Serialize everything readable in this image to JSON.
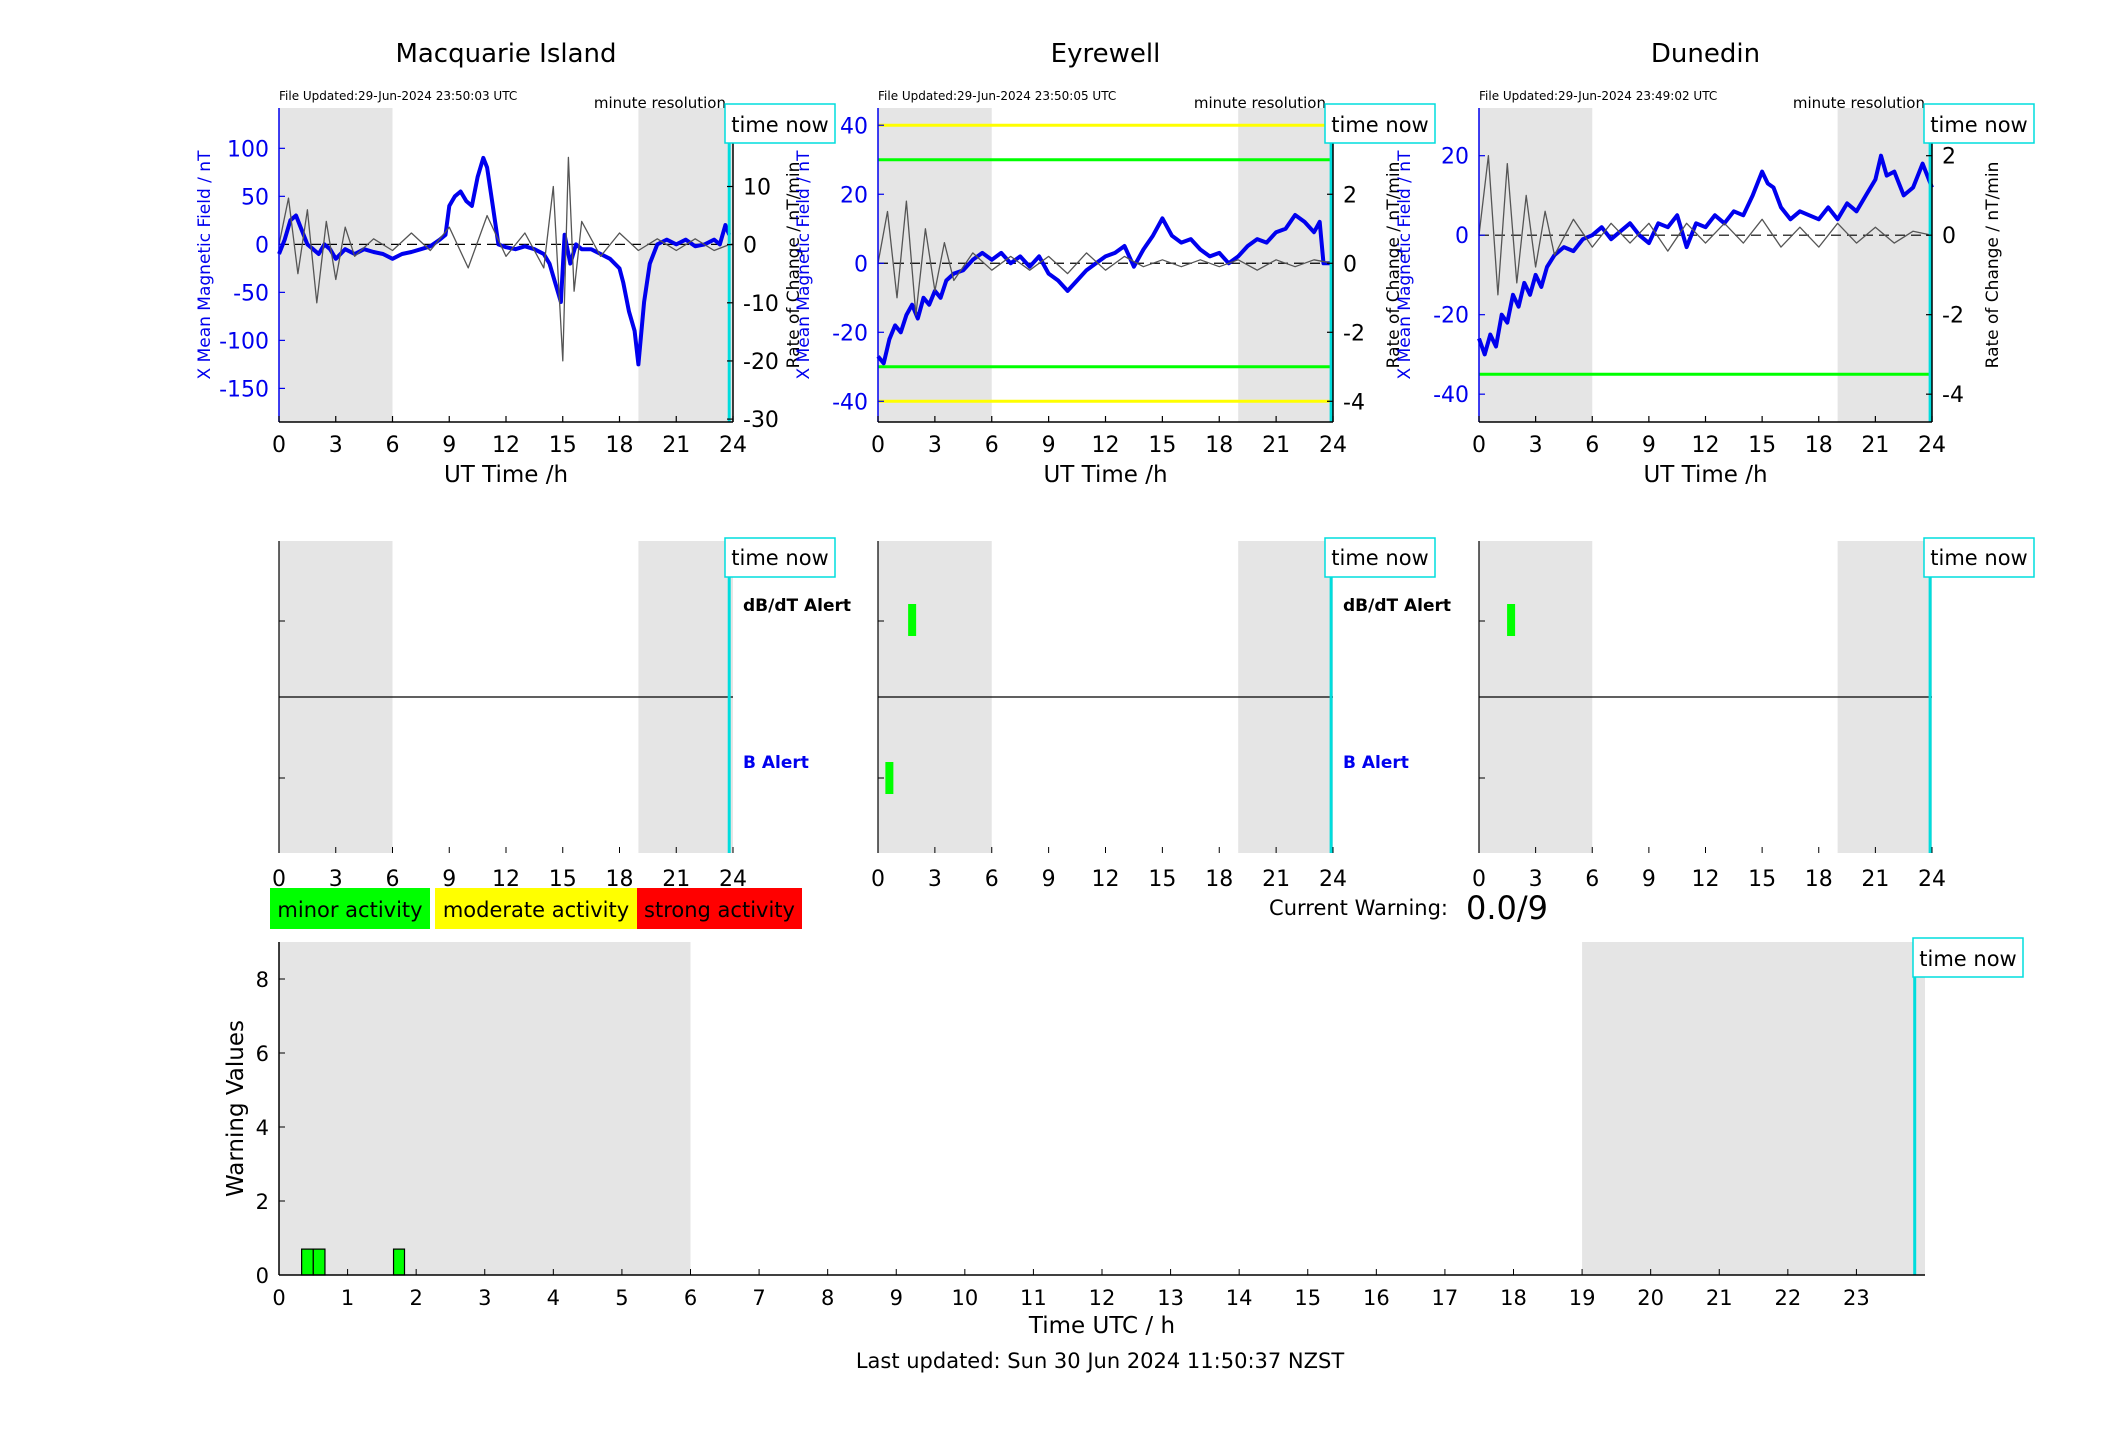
{
  "footer": {
    "last_updated": "Last updated: Sun 30 Jun 2024 11:50:37 NZST"
  },
  "time_now_label": "time now",
  "legend": {
    "minor": {
      "label": "minor activity",
      "color": "#00ff00"
    },
    "moderate": {
      "label": "moderate activity",
      "color": "#ffff00"
    },
    "strong": {
      "label": "strong activity",
      "color": "#ff0000"
    }
  },
  "current_warning": {
    "label": "Current Warning:",
    "value": "0.0/9"
  },
  "colors": {
    "field": "#0000ee",
    "rate": "#555555",
    "night": "#e5e5e5",
    "now": "#00dddd",
    "warn_green": "#00ff00",
    "warn_yellow": "#ffff00"
  },
  "chart_data": [
    {
      "type": "line",
      "title": "Macquarie Island",
      "file_updated": "File Updated:29-Jun-2024 23:50:03 UTC",
      "resolution": "minute resolution",
      "xlabel": "UT Time /h",
      "ylabel_left": "X Mean Magnetic Field / nT",
      "ylabel_right": "Rate of Change / nT/min",
      "xlim": [
        0,
        24
      ],
      "xticks": [
        0,
        3,
        6,
        9,
        12,
        15,
        18,
        21,
        24
      ],
      "ylim_left": [
        -185,
        142
      ],
      "yticks_left": [
        -150,
        -100,
        -50,
        0,
        50,
        100
      ],
      "ylim_right": [
        -30.5,
        23.5
      ],
      "yticks_right": [
        -30,
        -20,
        -10,
        0,
        10,
        20
      ],
      "night_bands": [
        [
          0,
          6
        ],
        [
          19,
          24
        ]
      ],
      "now": 23.8,
      "threshold_lines": [],
      "series": [
        {
          "axis": "left",
          "x": [
            0,
            0.3,
            0.6,
            0.9,
            1.2,
            1.5,
            1.8,
            2.1,
            2.4,
            2.7,
            3,
            3.5,
            4,
            4.5,
            5,
            5.5,
            6,
            6.5,
            7,
            7.5,
            8,
            8.5,
            8.8,
            9,
            9.3,
            9.6,
            9.9,
            10.2,
            10.5,
            10.8,
            11,
            11.3,
            11.6,
            12,
            12.5,
            13,
            13.5,
            14,
            14.3,
            14.6,
            14.9,
            15.1,
            15.4,
            15.7,
            16,
            16.5,
            17,
            17.5,
            18,
            18.2,
            18.5,
            18.8,
            19,
            19.3,
            19.6,
            20,
            20.5,
            21,
            21.5,
            22,
            22.5,
            23,
            23.3,
            23.6,
            23.8
          ],
          "y": [
            -10,
            5,
            25,
            30,
            15,
            0,
            -5,
            -10,
            0,
            -5,
            -15,
            -5,
            -10,
            -5,
            -8,
            -10,
            -15,
            -10,
            -8,
            -5,
            -2,
            5,
            10,
            40,
            50,
            55,
            45,
            40,
            70,
            90,
            80,
            40,
            0,
            -3,
            -5,
            -2,
            -5,
            -10,
            -20,
            -40,
            -60,
            10,
            -20,
            0,
            -5,
            -5,
            -10,
            -15,
            -25,
            -40,
            -70,
            -90,
            -125,
            -60,
            -20,
            0,
            5,
            0,
            5,
            -2,
            0,
            5,
            0,
            20,
            10
          ]
        },
        {
          "axis": "right",
          "x": [
            0,
            0.5,
            1,
            1.5,
            2,
            2.5,
            3,
            3.5,
            4,
            5,
            6,
            7,
            8,
            9,
            10,
            11,
            12,
            13,
            14,
            14.5,
            15,
            15.3,
            15.6,
            16,
            17,
            18,
            19,
            20,
            21,
            22,
            23,
            23.8
          ],
          "y": [
            0,
            8,
            -5,
            6,
            -10,
            4,
            -6,
            3,
            -2,
            1,
            -1,
            2,
            -1,
            3,
            -4,
            5,
            -2,
            2,
            -4,
            10,
            -20,
            15,
            -8,
            4,
            -2,
            2,
            -1,
            1,
            -1,
            1,
            -1,
            0
          ]
        }
      ]
    },
    {
      "type": "line",
      "title": "Eyrewell",
      "file_updated": "File Updated:29-Jun-2024 23:50:05 UTC",
      "resolution": "minute resolution",
      "xlabel": "UT Time /h",
      "ylabel_left": "X Mean Magnetic Field / nT",
      "ylabel_right": "Rate of Change / nT/min",
      "xlim": [
        0,
        24
      ],
      "xticks": [
        0,
        3,
        6,
        9,
        12,
        15,
        18,
        21,
        24
      ],
      "ylim_left": [
        -46,
        45
      ],
      "yticks_left": [
        -40,
        -20,
        0,
        20,
        40
      ],
      "ylim_right": [
        -4.6,
        4.5
      ],
      "yticks_right": [
        -4,
        -2,
        0,
        2,
        4
      ],
      "night_bands": [
        [
          0,
          6
        ],
        [
          19,
          24
        ]
      ],
      "now": 23.9,
      "threshold_lines": [
        {
          "axis": "left",
          "y": 40,
          "color": "#ffff00"
        },
        {
          "axis": "left",
          "y": 30,
          "color": "#00ff00"
        },
        {
          "axis": "left",
          "y": -30,
          "color": "#00ff00"
        },
        {
          "axis": "left",
          "y": -40,
          "color": "#ffff00"
        }
      ],
      "series": [
        {
          "axis": "left",
          "x": [
            0,
            0.3,
            0.6,
            0.9,
            1.2,
            1.5,
            1.8,
            2.1,
            2.4,
            2.7,
            3,
            3.3,
            3.6,
            4,
            4.5,
            5,
            5.5,
            6,
            6.5,
            7,
            7.5,
            8,
            8.5,
            9,
            9.5,
            10,
            10.5,
            11,
            11.5,
            12,
            12.5,
            13,
            13.5,
            14,
            14.5,
            15,
            15.5,
            16,
            16.5,
            17,
            17.5,
            18,
            18.5,
            19,
            19.5,
            20,
            20.5,
            21,
            21.5,
            22,
            22.5,
            23,
            23.3,
            23.5,
            24
          ],
          "y": [
            -27,
            -29,
            -22,
            -18,
            -20,
            -15,
            -12,
            -16,
            -10,
            -12,
            -8,
            -10,
            -5,
            -3,
            -2,
            1,
            3,
            1,
            3,
            0,
            2,
            -1,
            2,
            -3,
            -5,
            -8,
            -5,
            -2,
            0,
            2,
            3,
            5,
            -1,
            4,
            8,
            13,
            8,
            6,
            7,
            4,
            2,
            3,
            0,
            2,
            5,
            7,
            6,
            9,
            10,
            14,
            12,
            9,
            12,
            0,
            0
          ]
        },
        {
          "axis": "right",
          "x": [
            0,
            0.5,
            1,
            1.5,
            2,
            2.5,
            3,
            3.5,
            4,
            5,
            6,
            7,
            8,
            9,
            10,
            11,
            12,
            13,
            14,
            15,
            16,
            17,
            18,
            19,
            20,
            21,
            22,
            23,
            24
          ],
          "y": [
            0,
            1.5,
            -1,
            1.8,
            -1.5,
            1,
            -0.8,
            0.6,
            -0.5,
            0.3,
            -0.2,
            0.2,
            -0.2,
            0.2,
            -0.3,
            0.3,
            -0.2,
            0.2,
            -0.1,
            0.1,
            -0.1,
            0.1,
            -0.1,
            0.1,
            -0.2,
            0.1,
            -0.1,
            0.1,
            0
          ]
        }
      ]
    },
    {
      "type": "line",
      "title": "Dunedin",
      "file_updated": "File Updated:29-Jun-2024 23:49:02 UTC",
      "resolution": "minute resolution",
      "xlabel": "UT Time /h",
      "ylabel_left": "X Mean Magnetic Field / nT",
      "ylabel_right": "Rate of Change / nT/min",
      "xlim": [
        0,
        24
      ],
      "xticks": [
        0,
        3,
        6,
        9,
        12,
        15,
        18,
        21,
        24
      ],
      "ylim_left": [
        -47,
        32
      ],
      "yticks_left": [
        -40,
        -20,
        0,
        20
      ],
      "ylim_right": [
        -4.7,
        3.2
      ],
      "yticks_right": [
        -4,
        -2,
        0,
        2
      ],
      "night_bands": [
        [
          0,
          6
        ],
        [
          19,
          24
        ]
      ],
      "now": 23.9,
      "threshold_lines": [
        {
          "axis": "left",
          "y": -35,
          "color": "#00ff00"
        }
      ],
      "series": [
        {
          "axis": "left",
          "x": [
            0,
            0.3,
            0.6,
            0.9,
            1.2,
            1.5,
            1.8,
            2.1,
            2.4,
            2.7,
            3,
            3.3,
            3.6,
            4,
            4.5,
            5,
            5.5,
            6,
            6.5,
            7,
            7.5,
            8,
            8.5,
            9,
            9.5,
            10,
            10.5,
            11,
            11.5,
            12,
            12.5,
            13,
            13.5,
            14,
            14.5,
            15,
            15.3,
            15.6,
            16,
            16.5,
            17,
            17.5,
            18,
            18.5,
            19,
            19.5,
            20,
            20.5,
            21,
            21.3,
            21.6,
            22,
            22.5,
            23,
            23.5,
            24
          ],
          "y": [
            -26,
            -30,
            -25,
            -28,
            -20,
            -22,
            -15,
            -18,
            -12,
            -15,
            -10,
            -13,
            -8,
            -5,
            -3,
            -4,
            -1,
            0,
            2,
            -1,
            1,
            3,
            0,
            -2,
            3,
            2,
            5,
            -3,
            3,
            2,
            5,
            3,
            6,
            5,
            10,
            16,
            13,
            12,
            7,
            4,
            6,
            5,
            4,
            7,
            4,
            8,
            6,
            10,
            14,
            20,
            15,
            16,
            10,
            12,
            18,
            12
          ]
        },
        {
          "axis": "right",
          "x": [
            0,
            0.5,
            1,
            1.5,
            2,
            2.5,
            3,
            3.5,
            4,
            5,
            6,
            7,
            8,
            9,
            10,
            11,
            12,
            13,
            14,
            15,
            16,
            17,
            18,
            19,
            20,
            21,
            22,
            23,
            24
          ],
          "y": [
            0,
            2,
            -1.5,
            1.8,
            -1.2,
            1,
            -0.8,
            0.6,
            -0.5,
            0.4,
            -0.3,
            0.3,
            -0.2,
            0.3,
            -0.4,
            0.3,
            -0.2,
            0.3,
            -0.2,
            0.4,
            -0.3,
            0.2,
            -0.3,
            0.3,
            -0.2,
            0.2,
            -0.2,
            0.1,
            0
          ]
        }
      ]
    },
    {
      "type": "bar",
      "title": "",
      "panel": "alerts",
      "station": "Macquarie Island",
      "xlim": [
        0,
        24
      ],
      "xticks": [
        0,
        3,
        6,
        9,
        12,
        15,
        18,
        21,
        24
      ],
      "row_labels": [
        "dB/dT Alert",
        "B Alert"
      ],
      "night_bands": [
        [
          0,
          6
        ],
        [
          19,
          24
        ]
      ],
      "now": 23.8,
      "dbdt_alerts": [],
      "b_alerts": []
    },
    {
      "type": "bar",
      "title": "",
      "panel": "alerts",
      "station": "Eyrewell",
      "xlim": [
        0,
        24
      ],
      "xticks": [
        0,
        3,
        6,
        9,
        12,
        15,
        18,
        21,
        24
      ],
      "row_labels": [
        "dB/dT Alert",
        "B Alert"
      ],
      "night_bands": [
        [
          0,
          6
        ],
        [
          19,
          24
        ]
      ],
      "now": 23.9,
      "dbdt_alerts": [
        1.8
      ],
      "b_alerts": [
        0.6
      ]
    },
    {
      "type": "bar",
      "title": "",
      "panel": "alerts",
      "station": "Dunedin",
      "xlim": [
        0,
        24
      ],
      "xticks": [
        0,
        3,
        6,
        9,
        12,
        15,
        18,
        21,
        24
      ],
      "row_labels": [
        "",
        ""
      ],
      "night_bands": [
        [
          0,
          6
        ],
        [
          19,
          24
        ]
      ],
      "now": 23.9,
      "dbdt_alerts": [
        1.7
      ],
      "b_alerts": []
    },
    {
      "type": "bar",
      "title": "",
      "panel": "warning",
      "xlabel": "Time UTC / h",
      "ylabel": "Warning Values",
      "xlim": [
        0,
        24
      ],
      "xticks": [
        0,
        1,
        2,
        3,
        4,
        5,
        6,
        7,
        8,
        9,
        10,
        11,
        12,
        13,
        14,
        15,
        16,
        17,
        18,
        19,
        20,
        21,
        22,
        23
      ],
      "ylim": [
        0,
        9
      ],
      "yticks": [
        0,
        2,
        4,
        6,
        8
      ],
      "night_bands": [
        [
          0,
          6
        ],
        [
          19,
          24
        ]
      ],
      "now": 23.85,
      "bars": [
        {
          "start": 0.33,
          "end": 0.5,
          "value": 0.7
        },
        {
          "start": 0.5,
          "end": 0.67,
          "value": 0.7
        },
        {
          "start": 1.67,
          "end": 1.83,
          "value": 0.7
        }
      ]
    }
  ]
}
